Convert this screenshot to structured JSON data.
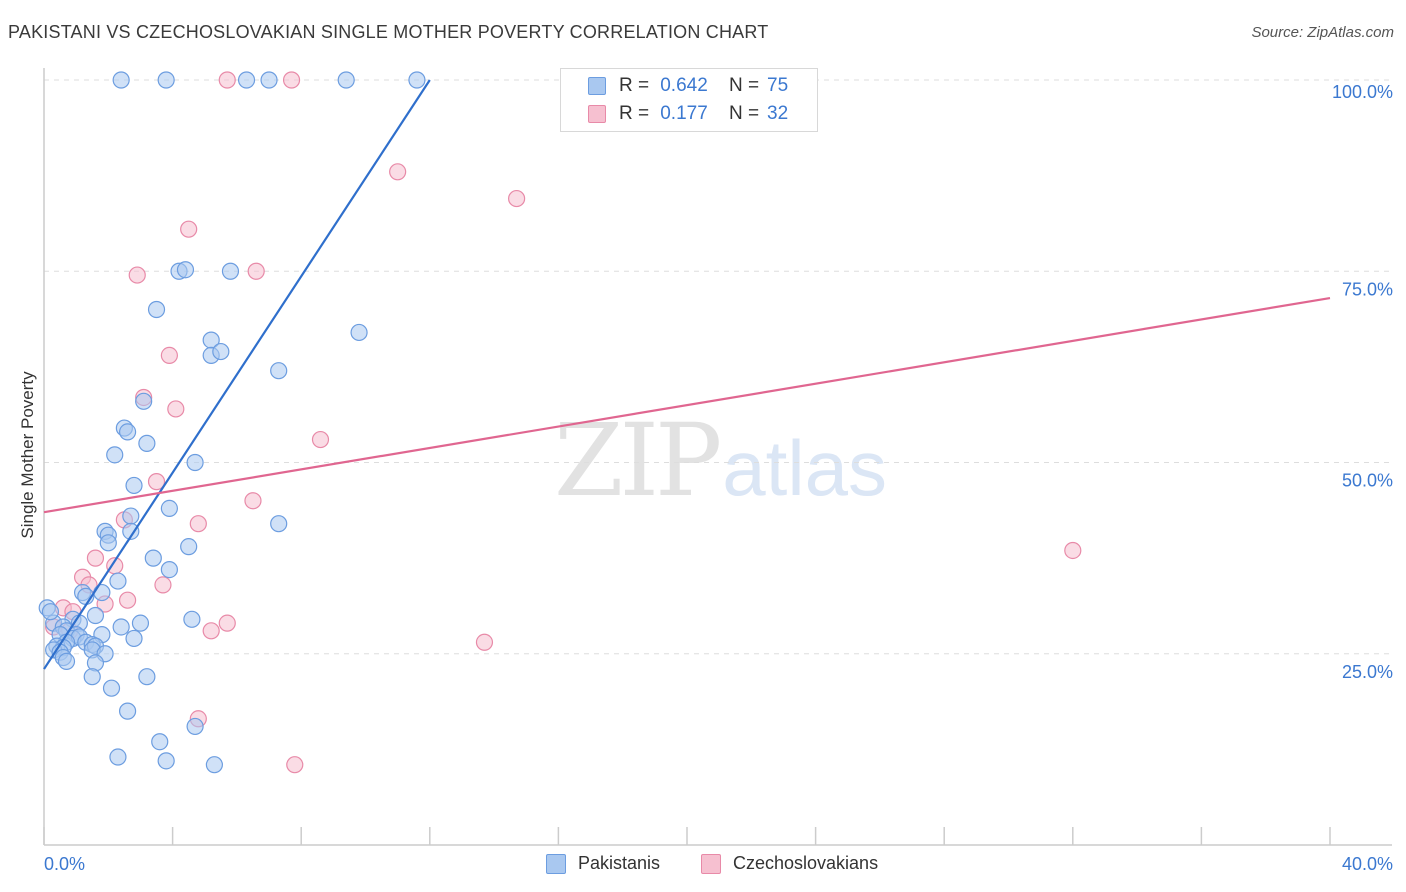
{
  "header": {
    "title": "PAKISTANI VS CZECHOSLOVAKIAN SINGLE MOTHER POVERTY CORRELATION CHART",
    "source": "Source: ZipAtlas.com"
  },
  "watermark": {
    "zip": "ZIP",
    "atlas": "atlas"
  },
  "legend_top": {
    "rows": [
      {
        "r_label": "R =",
        "r_value": "0.642",
        "n_label": "N =",
        "n_value": "75"
      },
      {
        "r_label": "R =",
        "r_value": "0.177",
        "n_label": "N =",
        "n_value": "32"
      }
    ]
  },
  "legend_bottom": {
    "items": [
      "Pakistanis",
      "Czechoslovakians"
    ]
  },
  "colors": {
    "blue_fill": "#a9c8f0",
    "blue_stroke": "#6c9de0",
    "blue_line": "#2f6fcc",
    "pink_fill": "#f6c0d0",
    "pink_stroke": "#e88aa8",
    "pink_line": "#e06690",
    "axis_text": "#3b78d0",
    "grid": "#dddddd"
  },
  "chart_data": {
    "type": "scatter",
    "title": "PAKISTANI VS CZECHOSLOVAKIAN SINGLE MOTHER POVERTY CORRELATION CHART",
    "xlabel": "",
    "ylabel": "Single Mother Poverty",
    "xlim": [
      0,
      40
    ],
    "ylim": [
      0,
      102
    ],
    "x_tick_labels": [
      "0.0%",
      "40.0%"
    ],
    "y_ticks": [
      25,
      50,
      75,
      100
    ],
    "y_tick_labels": [
      "25.0%",
      "50.0%",
      "75.0%",
      "100.0%"
    ],
    "grid": true,
    "legend_position": "top-center",
    "series": [
      {
        "name": "Pakistanis",
        "R": 0.642,
        "N": 75,
        "trend": {
          "x": [
            0.0,
            12.0
          ],
          "y": [
            23.0,
            100.0
          ]
        },
        "points": [
          [
            2.4,
            100
          ],
          [
            3.8,
            100
          ],
          [
            6.3,
            100
          ],
          [
            7.0,
            100
          ],
          [
            9.4,
            100
          ],
          [
            11.6,
            100
          ],
          [
            4.2,
            75.0
          ],
          [
            4.4,
            75.2
          ],
          [
            5.8,
            75.0
          ],
          [
            3.5,
            70.0
          ],
          [
            5.2,
            66.0
          ],
          [
            5.2,
            64.0
          ],
          [
            5.5,
            64.5
          ],
          [
            9.8,
            67.0
          ],
          [
            7.3,
            62.0
          ],
          [
            3.1,
            58.0
          ],
          [
            2.5,
            54.5
          ],
          [
            2.6,
            54.0
          ],
          [
            3.2,
            52.5
          ],
          [
            2.2,
            51.0
          ],
          [
            4.7,
            50.0
          ],
          [
            2.8,
            47.0
          ],
          [
            3.9,
            44.0
          ],
          [
            2.7,
            43.0
          ],
          [
            7.3,
            42.0
          ],
          [
            1.9,
            41.0
          ],
          [
            2.0,
            40.5
          ],
          [
            2.7,
            41.0
          ],
          [
            2.0,
            39.5
          ],
          [
            4.5,
            39.0
          ],
          [
            3.4,
            37.5
          ],
          [
            3.9,
            36.0
          ],
          [
            2.3,
            34.5
          ],
          [
            1.2,
            33.0
          ],
          [
            1.8,
            33.0
          ],
          [
            1.3,
            32.5
          ],
          [
            1.6,
            30.0
          ],
          [
            0.9,
            29.5
          ],
          [
            1.1,
            29.0
          ],
          [
            4.6,
            29.5
          ],
          [
            2.4,
            28.5
          ],
          [
            3.0,
            29.0
          ],
          [
            0.3,
            29.0
          ],
          [
            0.6,
            28.5
          ],
          [
            0.7,
            28.0
          ],
          [
            0.5,
            27.5
          ],
          [
            1.0,
            27.5
          ],
          [
            1.8,
            27.5
          ],
          [
            0.9,
            27.0
          ],
          [
            1.1,
            27.2
          ],
          [
            2.8,
            27.0
          ],
          [
            0.7,
            26.5
          ],
          [
            1.3,
            26.5
          ],
          [
            1.5,
            26.2
          ],
          [
            0.4,
            26.0
          ],
          [
            0.6,
            25.8
          ],
          [
            1.6,
            26.0
          ],
          [
            0.3,
            25.5
          ],
          [
            0.5,
            25.2
          ],
          [
            1.5,
            25.5
          ],
          [
            1.9,
            25.0
          ],
          [
            0.6,
            24.5
          ],
          [
            0.7,
            24.0
          ],
          [
            1.6,
            23.8
          ],
          [
            1.5,
            22.0
          ],
          [
            3.2,
            22.0
          ],
          [
            2.1,
            20.5
          ],
          [
            2.6,
            17.5
          ],
          [
            3.6,
            13.5
          ],
          [
            4.7,
            15.5
          ],
          [
            2.3,
            11.5
          ],
          [
            3.8,
            11.0
          ],
          [
            5.3,
            10.5
          ],
          [
            0.1,
            31.0
          ],
          [
            0.2,
            30.5
          ]
        ]
      },
      {
        "name": "Czechoslovakians",
        "R": 0.177,
        "N": 32,
        "trend": {
          "x": [
            0.0,
            40.0
          ],
          "y": [
            43.5,
            71.5
          ]
        },
        "points": [
          [
            5.7,
            100
          ],
          [
            7.7,
            100
          ],
          [
            11.0,
            88.0
          ],
          [
            14.7,
            84.5
          ],
          [
            4.5,
            80.5
          ],
          [
            2.9,
            74.5
          ],
          [
            6.6,
            75.0
          ],
          [
            3.9,
            64.0
          ],
          [
            3.1,
            58.5
          ],
          [
            4.1,
            57.0
          ],
          [
            8.6,
            53.0
          ],
          [
            3.5,
            47.5
          ],
          [
            6.5,
            45.0
          ],
          [
            2.5,
            42.5
          ],
          [
            4.8,
            42.0
          ],
          [
            32.0,
            38.5
          ],
          [
            1.6,
            37.5
          ],
          [
            2.2,
            36.5
          ],
          [
            1.2,
            35.0
          ],
          [
            1.4,
            34.0
          ],
          [
            3.7,
            34.0
          ],
          [
            2.6,
            32.0
          ],
          [
            1.9,
            31.5
          ],
          [
            0.6,
            31.0
          ],
          [
            0.9,
            30.5
          ],
          [
            0.3,
            28.5
          ],
          [
            0.8,
            28.0
          ],
          [
            5.2,
            28.0
          ],
          [
            5.7,
            29.0
          ],
          [
            13.7,
            26.5
          ],
          [
            4.8,
            16.5
          ],
          [
            7.8,
            10.5
          ]
        ]
      }
    ]
  }
}
